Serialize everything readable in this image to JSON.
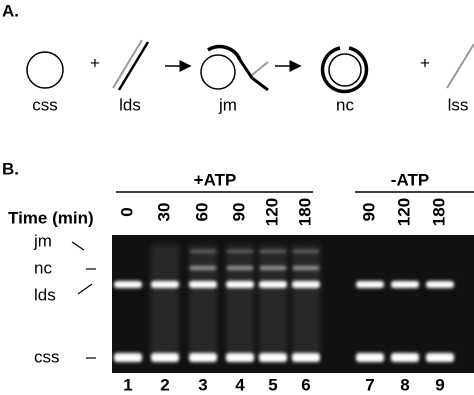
{
  "panel_a": {
    "label": "A.",
    "plus": [
      "+",
      "+"
    ],
    "items": [
      "css",
      "lds",
      "jm",
      "nc",
      "lss"
    ]
  },
  "panel_b": {
    "label": "B.",
    "groups": [
      "+ATP",
      "-ATP"
    ],
    "time_title": "Time (min)",
    "times": [
      0,
      30,
      60,
      90,
      120,
      180,
      90,
      120,
      180
    ],
    "band_labels": [
      "jm",
      "nc",
      "lds",
      "css"
    ],
    "lanes": [
      1,
      2,
      3,
      4,
      5,
      6,
      7,
      8,
      9
    ]
  }
}
